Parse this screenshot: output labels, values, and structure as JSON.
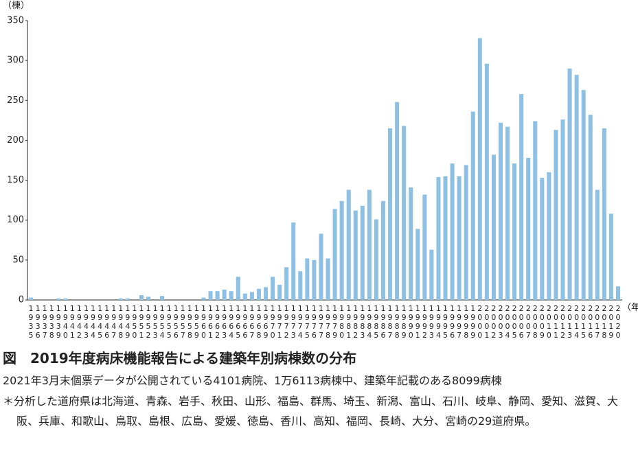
{
  "chart_data": {
    "type": "bar",
    "y_label": "（棟）",
    "x_label": "（年）",
    "title": "図　2019年度病床機能報告による建築年別病棟数の分布",
    "subtitle": "2021年3月末個票データが公開されている4101病院、1万6113病棟中、建築年記載のある8099病棟",
    "note": "＊分析した道府県は北海道、青森、岩手、秋田、山形、福島、群馬、埼玉、新潟、富山、石川、岐阜、静岡、愛知、滋賀、大阪、兵庫、和歌山、鳥取、島根、広島、愛媛、徳島、香川、高知、福岡、長崎、大分、宮崎の29道府県。",
    "categories": [
      "1935",
      "1936",
      "1937",
      "1938",
      "1939",
      "1940",
      "1941",
      "1942",
      "1943",
      "1944",
      "1945",
      "1946",
      "1947",
      "1948",
      "1949",
      "1950",
      "1951",
      "1952",
      "1953",
      "1954",
      "1955",
      "1956",
      "1957",
      "1958",
      "1959",
      "1960",
      "1961",
      "1962",
      "1963",
      "1964",
      "1965",
      "1966",
      "1967",
      "1968",
      "1969",
      "1970",
      "1971",
      "1972",
      "1973",
      "1974",
      "1975",
      "1976",
      "1977",
      "1978",
      "1979",
      "1980",
      "1981",
      "1982",
      "1983",
      "1984",
      "1985",
      "1986",
      "1987",
      "1988",
      "1989",
      "1990",
      "1991",
      "1992",
      "1993",
      "1994",
      "1995",
      "1996",
      "1997",
      "1998",
      "1999",
      "2000",
      "2001",
      "2002",
      "2003",
      "2004",
      "2005",
      "2006",
      "2007",
      "2008",
      "2009",
      "2010",
      "2011",
      "2012",
      "2013",
      "2014",
      "2015",
      "2016",
      "2017",
      "2018",
      "2019",
      "2020"
    ],
    "values": [
      3,
      0,
      0,
      0,
      2,
      2,
      0,
      0,
      0,
      0,
      0,
      0,
      0,
      2,
      2,
      0,
      6,
      4,
      0,
      5,
      0,
      0,
      0,
      0,
      0,
      3,
      11,
      11,
      13,
      11,
      29,
      8,
      10,
      14,
      16,
      29,
      19,
      41,
      97,
      36,
      52,
      50,
      83,
      52,
      114,
      124,
      138,
      112,
      118,
      138,
      101,
      124,
      215,
      248,
      218,
      141,
      89,
      132,
      63,
      154,
      155,
      171,
      155,
      169,
      236,
      328,
      296,
      182,
      222,
      217,
      171,
      258,
      178,
      224,
      153,
      160,
      213,
      226,
      290,
      282,
      263,
      232,
      138,
      215,
      108,
      17
    ],
    "color": "#8ec0e4",
    "ylim": [
      0,
      350
    ],
    "yticks": [
      0,
      50,
      100,
      150,
      200,
      250,
      300,
      350
    ],
    "grid": false
  }
}
